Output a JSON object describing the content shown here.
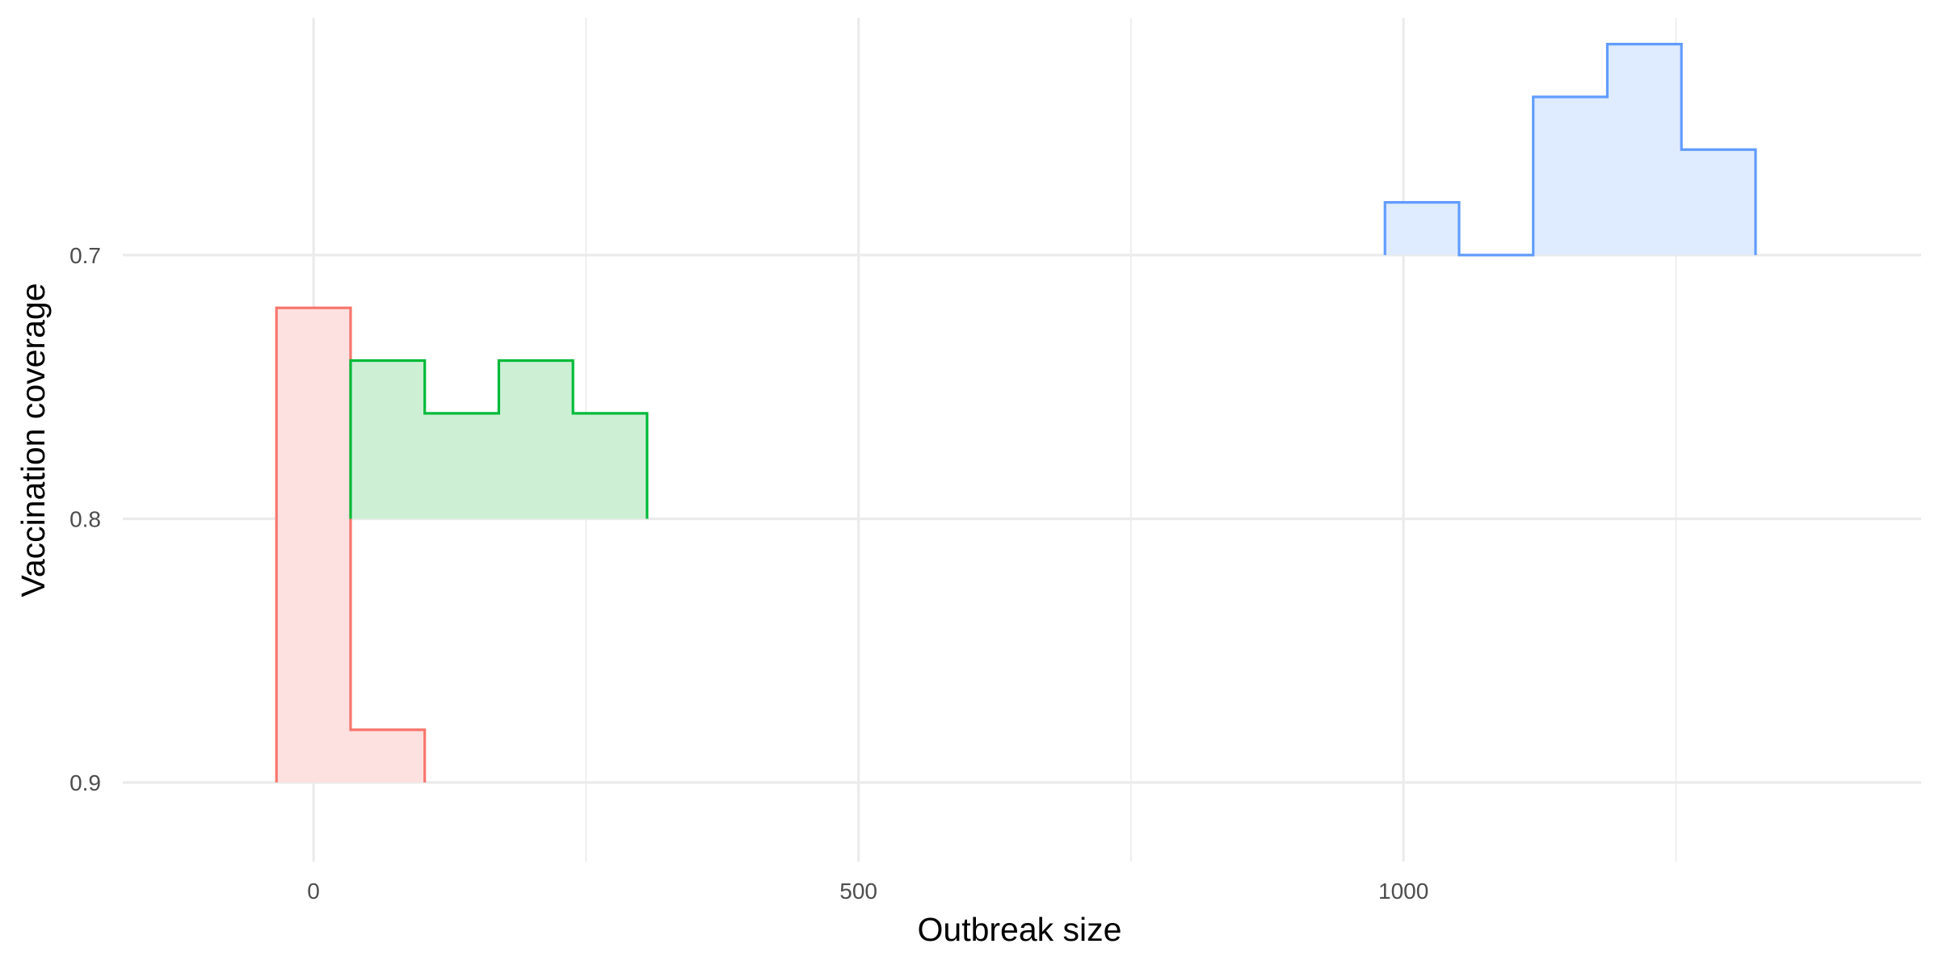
{
  "chart_data": {
    "type": "area",
    "xlabel": "Outbreak size",
    "ylabel": "Vaccination coverage",
    "xlim": [
      -175,
      1475
    ],
    "ylim": [
      0.93,
      0.61
    ],
    "y_reversed": true,
    "x_ticks": [
      0,
      500,
      1000
    ],
    "x_tick_labels": [
      "0",
      "500",
      "1000"
    ],
    "y_ticks": [
      0.7,
      0.8,
      0.9
    ],
    "y_tick_labels": [
      "0.7",
      "0.8",
      "0.9"
    ],
    "grid": true,
    "legend": "none",
    "bin_width": 68,
    "series": [
      {
        "baseline": 0.9,
        "color": "#F8766D",
        "fill": "#FDE1E0",
        "bins": [
          {
            "x0": -34,
            "x1": 34,
            "y": 0.72
          },
          {
            "x0": 34,
            "x1": 102,
            "y": 0.88
          }
        ]
      },
      {
        "baseline": 0.8,
        "color": "#00BA38",
        "fill": "#CDF0D5",
        "bins": [
          {
            "x0": 34,
            "x1": 102,
            "y": 0.74
          },
          {
            "x0": 102,
            "x1": 170,
            "y": 0.76
          },
          {
            "x0": 170,
            "x1": 238,
            "y": 0.74
          },
          {
            "x0": 238,
            "x1": 306,
            "y": 0.76
          }
        ]
      },
      {
        "baseline": 0.7,
        "color": "#619CFF",
        "fill": "#DFEBFF",
        "bins": [
          {
            "x0": 983,
            "x1": 1051,
            "y": 0.68
          },
          {
            "x0": 1051,
            "x1": 1119,
            "y": 0.7
          },
          {
            "x0": 1119,
            "x1": 1187,
            "y": 0.64
          },
          {
            "x0": 1187,
            "x1": 1255,
            "y": 0.62
          },
          {
            "x0": 1255,
            "x1": 1323,
            "y": 0.66
          }
        ]
      }
    ]
  }
}
